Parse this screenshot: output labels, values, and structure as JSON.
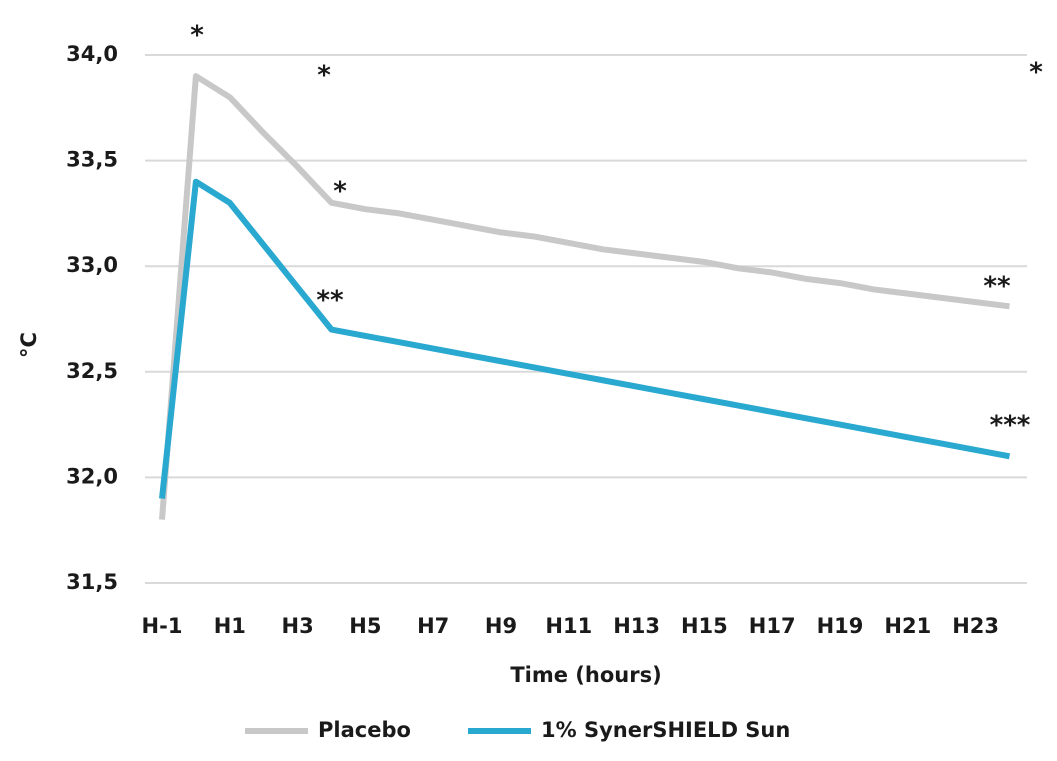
{
  "chart_data": {
    "type": "line",
    "x_label": "Time (hours)",
    "y_label": "°C",
    "categories": [
      "H-1",
      null,
      "H1",
      null,
      "H3",
      null,
      "H5",
      null,
      "H7",
      null,
      "H9",
      null,
      "H11",
      null,
      "H13",
      null,
      "H15",
      null,
      "H17",
      null,
      "H19",
      null,
      "H21",
      null,
      "H23",
      null
    ],
    "series": [
      {
        "name": "Placebo",
        "color": "#c8c8c8",
        "values": [
          31.8,
          33.9,
          33.8,
          33.63,
          33.47,
          33.3,
          33.27,
          33.25,
          33.22,
          33.19,
          33.16,
          33.14,
          33.11,
          33.08,
          33.06,
          33.04,
          33.02,
          32.99,
          32.97,
          32.94,
          32.92,
          32.89,
          32.87,
          32.85,
          32.83,
          32.81
        ]
      },
      {
        "name": "1% SynerSHIELD Sun",
        "color": "#29a8d0",
        "values": [
          31.9,
          33.4,
          33.3,
          33.1,
          32.9,
          32.7,
          32.67,
          32.64,
          32.61,
          32.58,
          32.55,
          32.52,
          32.49,
          32.46,
          32.43,
          32.4,
          32.37,
          32.34,
          32.31,
          32.28,
          32.25,
          32.22,
          32.19,
          32.16,
          32.13,
          32.1
        ]
      }
    ],
    "ylim": [
      31.5,
      34.0
    ],
    "yticks": [
      {
        "value": 31.5,
        "label": "31,5"
      },
      {
        "value": 32.0,
        "label": "32,0"
      },
      {
        "value": 32.5,
        "label": "32,5"
      },
      {
        "value": 33.0,
        "label": "33,0"
      },
      {
        "value": 33.5,
        "label": "33,5"
      },
      {
        "value": 34.0,
        "label": "34,0"
      }
    ],
    "grid": true,
    "legend": "bottom",
    "annotations": [
      "*",
      "*",
      "*",
      "**",
      "**",
      "***",
      "*"
    ]
  }
}
